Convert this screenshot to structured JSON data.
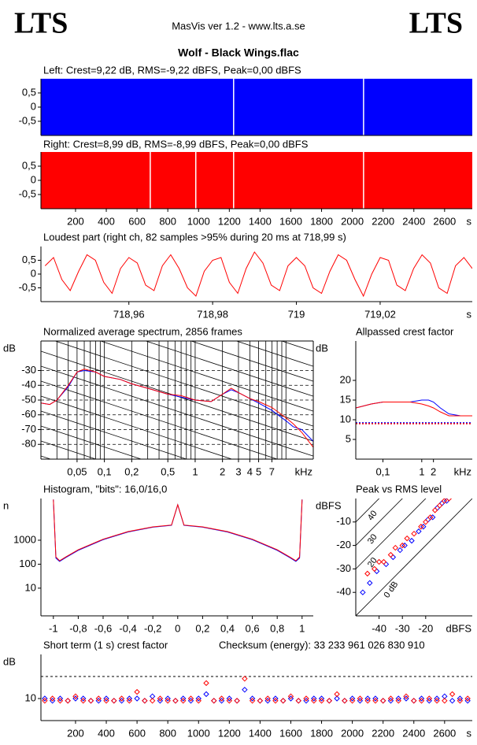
{
  "header": {
    "left_logo": "LTS",
    "subtitle": "MasVis ver 1.2 - www.lts.a.se",
    "right_logo": "LTS",
    "title": "Wolf - Black Wings.flac"
  },
  "chart_data": [
    {
      "type": "waveform",
      "title": "Left: Crest=9,22 dB, RMS=-9,22 dBFS, Peak=0,00 dBFS",
      "color": "#0000ff",
      "envelope": [
        -1,
        1
      ],
      "dropouts": [
        1228,
        2073
      ],
      "xlim": [
        -25,
        2780
      ],
      "ylim": [
        -1,
        1
      ],
      "yticks": [
        {
          "value": 0.5,
          "label": "0,5"
        },
        0,
        {
          "value": -0.5,
          "label": "-0,5"
        }
      ]
    },
    {
      "type": "waveform",
      "title": "Right: Crest=8,99 dB, RMS=-8,99 dBFS, Peak=0,00 dBFS",
      "color": "#ff0000",
      "envelope": [
        -1,
        1
      ],
      "dropouts": [
        686,
        982,
        1228,
        2073
      ],
      "xlim": [
        -25,
        2780
      ],
      "ylim": [
        -1,
        1
      ],
      "yticks": [
        {
          "value": 0.5,
          "label": "0,5"
        },
        0,
        {
          "value": -0.5,
          "label": "-0,5"
        }
      ],
      "xticks": [
        200,
        400,
        600,
        800,
        1000,
        1200,
        1400,
        1600,
        1800,
        2000,
        2200,
        2400,
        2600
      ],
      "xlabel": "s"
    },
    {
      "type": "line",
      "title": "Loudest part (right ch, 82 samples >95% during 20 ms at 718,99 s)",
      "color": "#ff0000",
      "x": [
        718.94,
        718.942,
        718.944,
        718.946,
        718.948,
        718.95,
        718.952,
        718.954,
        718.956,
        718.958,
        718.96,
        718.962,
        718.964,
        718.966,
        718.968,
        718.97,
        718.972,
        718.974,
        718.976,
        718.978,
        718.98,
        718.982,
        718.984,
        718.986,
        718.988,
        718.99,
        718.992,
        718.994,
        718.996,
        718.998,
        719,
        719.002,
        719.004,
        719.006,
        719.008,
        719.01,
        719.012,
        719.014,
        719.016,
        719.018,
        719.02,
        719.022,
        719.024,
        719.026,
        719.028,
        719.03,
        719.032,
        719.034,
        719.036,
        719.038,
        719.04,
        719.042
      ],
      "values": [
        0.3,
        0.6,
        -0.2,
        -0.6,
        0.1,
        0.7,
        0.5,
        -0.3,
        -0.7,
        0.2,
        0.6,
        0.4,
        -0.4,
        -0.6,
        0.3,
        0.7,
        0.2,
        -0.5,
        -0.8,
        0.1,
        0.5,
        0.6,
        -0.3,
        -0.7,
        0.2,
        0.8,
        0.4,
        -0.4,
        -0.6,
        0.3,
        0.6,
        0.3,
        -0.5,
        -0.7,
        0.1,
        0.7,
        0.5,
        -0.2,
        -0.8,
        0.0,
        0.6,
        0.5,
        -0.4,
        -0.6,
        0.2,
        0.7,
        0.4,
        -0.5,
        -0.7,
        0.3,
        0.6,
        0.2
      ],
      "xlim": [
        718.939,
        719.042
      ],
      "ylim": [
        -1,
        1
      ],
      "yticks": [
        {
          "value": 0.5,
          "label": "0,5"
        },
        0,
        {
          "value": -0.5,
          "label": "-0,5"
        }
      ],
      "xticks": [
        {
          "value": 718.96,
          "label": "718,96"
        },
        {
          "value": 718.98,
          "label": "718,98"
        },
        719,
        {
          "value": 719.02,
          "label": "719,02"
        }
      ],
      "xlabel": "s"
    },
    {
      "type": "line",
      "title": "Normalized average spectrum, 2856 frames",
      "ylabel": "dB",
      "xlabel": "kHz",
      "xlog": true,
      "grid": true,
      "x": [
        0.02,
        0.025,
        0.03,
        0.04,
        0.05,
        0.06,
        0.08,
        0.1,
        0.15,
        0.2,
        0.3,
        0.5,
        0.7,
        1,
        1.5,
        2,
        2.5,
        3,
        4,
        5,
        7,
        10,
        12,
        15,
        20
      ],
      "series": [
        {
          "color": "#0000ff",
          "values": [
            -52,
            -53,
            -50,
            -41,
            -31,
            -30,
            -31,
            -34,
            -36,
            -39,
            -42,
            -46,
            -48,
            -50,
            -51,
            -46,
            -43,
            -45,
            -49,
            -52,
            -57,
            -64,
            -68,
            -70,
            -78
          ]
        },
        {
          "color": "#ff0000",
          "values": [
            -52,
            -53,
            -50,
            -40,
            -31,
            -29,
            -31,
            -34,
            -36,
            -39,
            -42,
            -46,
            -47,
            -50,
            -51,
            -46,
            -42,
            -45,
            -49,
            -51,
            -55,
            -62,
            -66,
            -72,
            -82
          ]
        }
      ],
      "xlim": [
        0.02,
        20
      ],
      "ylim": [
        -90,
        -10
      ],
      "yticks": [
        -30,
        -40,
        -50,
        -60,
        -70,
        -80
      ],
      "xticks": [
        {
          "value": 0.05,
          "label": "0,05"
        },
        {
          "value": 0.1,
          "label": "0,1"
        },
        {
          "value": 0.2,
          "label": "0,2"
        },
        {
          "value": 0.5,
          "label": "0,5"
        },
        1,
        2,
        3,
        4,
        5,
        7
      ],
      "xminor": [
        0.02,
        0.03,
        0.04,
        0.06,
        0.07,
        0.08,
        0.09,
        0.3,
        0.4,
        0.6,
        0.7,
        0.8,
        0.9,
        6,
        8,
        9,
        10,
        20
      ]
    },
    {
      "type": "line",
      "title": "Allpassed crest factor",
      "ylabel": "dB",
      "xlabel": "kHz",
      "xlog": true,
      "x": [
        0.02,
        0.05,
        0.1,
        0.2,
        0.5,
        1,
        1.5,
        2,
        3,
        5,
        10,
        20
      ],
      "series": [
        {
          "color": "#0000ff",
          "values": [
            13,
            14,
            14.5,
            14.5,
            14.5,
            15,
            15,
            14.5,
            13,
            11.5,
            11,
            11
          ]
        },
        {
          "color": "#ff0000",
          "values": [
            13,
            14,
            14.5,
            14.5,
            14.5,
            14,
            13.5,
            13,
            12,
            11,
            11,
            11
          ]
        }
      ],
      "hlines": [
        {
          "value": 9.22,
          "color": "#0000ff"
        },
        {
          "value": 8.99,
          "color": "#ff0000"
        }
      ],
      "xlim": [
        0.02,
        20
      ],
      "ylim": [
        0,
        30
      ],
      "yticks": [
        20,
        15,
        10,
        5
      ],
      "xticks": [
        {
          "value": 0.1,
          "label": "0,1"
        },
        1,
        2
      ]
    },
    {
      "type": "line",
      "title": "Histogram, \"bits\": 16,0/16,0",
      "ylabel": "n",
      "ylog": true,
      "x": [
        -1,
        -0.98,
        -0.95,
        -0.9,
        -0.8,
        -0.6,
        -0.4,
        -0.2,
        -0.05,
        0,
        0.05,
        0.2,
        0.4,
        0.6,
        0.8,
        0.9,
        0.95,
        0.98,
        1
      ],
      "series": [
        {
          "color": "#0000ff",
          "values": [
            50000,
            180,
            130,
            190,
            380,
            1050,
            2200,
            3500,
            4200,
            30000,
            4200,
            3500,
            2200,
            1050,
            380,
            190,
            130,
            180,
            50000
          ]
        },
        {
          "color": "#ff0000",
          "values": [
            50000,
            200,
            140,
            200,
            400,
            1100,
            2300,
            3600,
            4300,
            30000,
            4300,
            3600,
            2300,
            1100,
            400,
            200,
            140,
            200,
            50000
          ]
        }
      ],
      "xlim": [
        -1.1,
        1.09
      ],
      "ylim": [
        0.7,
        55000
      ],
      "yticks": [
        1000,
        100,
        10
      ],
      "xticks": [
        -1,
        {
          "value": -0.8,
          "label": "-0,8"
        },
        {
          "value": -0.6,
          "label": "-0,6"
        },
        {
          "value": -0.4,
          "label": "-0,4"
        },
        {
          "value": -0.2,
          "label": "-0,2"
        },
        0,
        {
          "value": 0.2,
          "label": "0,2"
        },
        {
          "value": 0.4,
          "label": "0,4"
        },
        {
          "value": 0.6,
          "label": "0,6"
        },
        {
          "value": 0.8,
          "label": "0,8"
        },
        1
      ]
    },
    {
      "type": "scatter",
      "title": "Peak vs RMS level",
      "ylabel": "dBFS",
      "xlabel": "dBFS",
      "series": [
        {
          "color": "#0000ff",
          "x": [
            -47,
            -44,
            -41,
            -37,
            -34,
            -31,
            -29,
            -26,
            -23,
            -21,
            -19,
            -17,
            -15,
            -13,
            -11
          ],
          "values": [
            -40,
            -36,
            -31,
            -28,
            -25,
            -22,
            -20,
            -18,
            -14,
            -12,
            -9,
            -8,
            -4,
            -2,
            -1
          ]
        },
        {
          "color": "#ff0000",
          "x": [
            -45,
            -42,
            -40,
            -38,
            -35,
            -33,
            -30,
            -28,
            -25,
            -22,
            -20,
            -18,
            -16,
            -14,
            -12,
            -10
          ],
          "values": [
            -32,
            -30,
            -27,
            -27,
            -24,
            -21,
            -20,
            -17,
            -15,
            -12,
            -10,
            -8,
            -5,
            -3,
            -1,
            0
          ]
        }
      ],
      "diagonals": [
        {
          "value": 40,
          "label": "40"
        },
        {
          "value": 30,
          "label": "30"
        },
        {
          "value": 20,
          "label": "20"
        },
        {
          "value": 0,
          "label": "0 dB"
        }
      ],
      "xlim": [
        -50,
        0
      ],
      "ylim": [
        -50,
        0
      ],
      "yticks": [
        -10,
        -20,
        -30,
        -40
      ],
      "xticks": [
        -40,
        -30,
        -20
      ]
    },
    {
      "type": "scatter",
      "title": "Short term (1 s) crest factor",
      "checksum": "Checksum (energy):  33 233 961 026 830 910",
      "ylabel": "dB",
      "xlabel": "s",
      "x": [
        0,
        50,
        100,
        150,
        200,
        250,
        300,
        350,
        400,
        450,
        500,
        550,
        600,
        650,
        700,
        750,
        800,
        850,
        900,
        950,
        1000,
        1050,
        1100,
        1150,
        1200,
        1250,
        1300,
        1350,
        1400,
        1450,
        1500,
        1550,
        1600,
        1650,
        1700,
        1750,
        1800,
        1850,
        1900,
        1950,
        2000,
        2050,
        2100,
        2150,
        2200,
        2250,
        2300,
        2350,
        2400,
        2450,
        2500,
        2550,
        2600,
        2650,
        2700,
        2750
      ],
      "series": [
        {
          "color": "#0000ff",
          "values": [
            10,
            9,
            10,
            9,
            10,
            10,
            9,
            9,
            10,
            9,
            9,
            10,
            10,
            9,
            11,
            9,
            10,
            9,
            10,
            9,
            10,
            12,
            9,
            9,
            10,
            9,
            14,
            10,
            9,
            9,
            10,
            9,
            10,
            9,
            9,
            10,
            10,
            9,
            10,
            9,
            10,
            9,
            10,
            10,
            9,
            9,
            10,
            10,
            9,
            10,
            9,
            10,
            11,
            9,
            10,
            9
          ]
        },
        {
          "color": "#ff0000",
          "values": [
            9,
            10,
            9,
            9,
            11,
            9,
            9,
            10,
            9,
            9,
            10,
            9,
            13,
            9,
            9,
            10,
            9,
            9,
            9,
            10,
            9,
            17,
            9,
            10,
            9,
            9,
            19,
            9,
            9,
            10,
            9,
            9,
            11,
            9,
            10,
            9,
            9,
            9,
            12,
            9,
            9,
            10,
            9,
            9,
            9,
            10,
            9,
            11,
            9,
            9,
            10,
            9,
            9,
            12,
            9,
            10
          ]
        }
      ],
      "threshold": 20,
      "xlim": [
        -25,
        2780
      ],
      "ylim": [
        0,
        30
      ],
      "yticks": [
        10
      ],
      "xticks": [
        200,
        400,
        600,
        800,
        1000,
        1200,
        1400,
        1600,
        1800,
        2000,
        2200,
        2400,
        2600
      ]
    }
  ]
}
